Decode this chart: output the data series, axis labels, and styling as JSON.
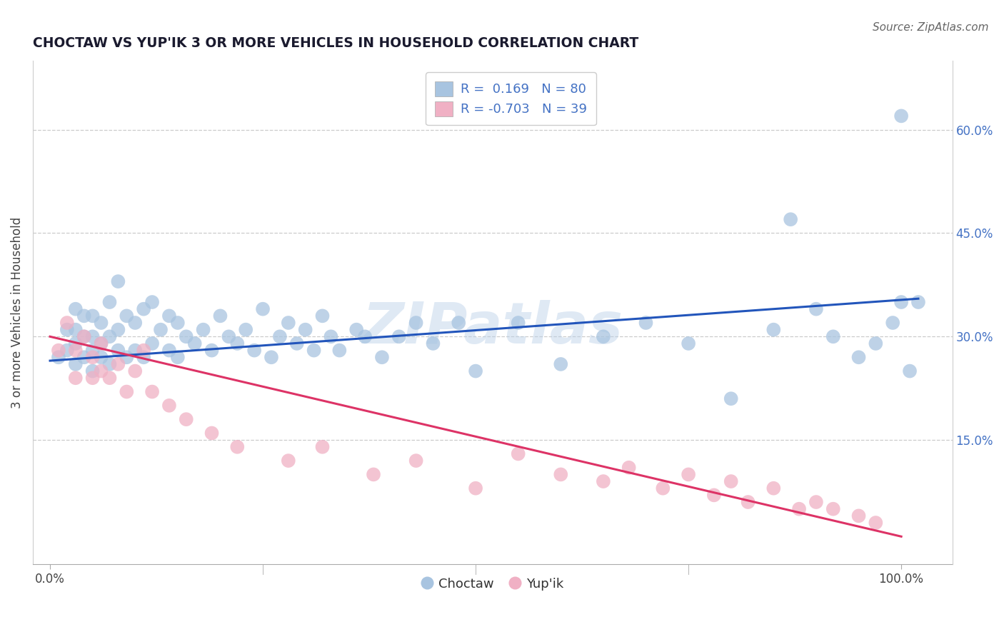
{
  "title": "CHOCTAW VS YUP'IK 3 OR MORE VEHICLES IN HOUSEHOLD CORRELATION CHART",
  "source": "Source: ZipAtlas.com",
  "ylabel": "3 or more Vehicles in Household",
  "ytick_values": [
    0.15,
    0.3,
    0.45,
    0.6
  ],
  "ytick_labels": [
    "15.0%",
    "30.0%",
    "45.0%",
    "60.0%"
  ],
  "xtick_values": [
    0.0,
    1.0
  ],
  "xtick_labels": [
    "0.0%",
    "100.0%"
  ],
  "xlim": [
    -0.02,
    1.06
  ],
  "ylim": [
    -0.03,
    0.7
  ],
  "choctaw_color": "#a8c4e0",
  "yupik_color": "#f0b0c4",
  "choctaw_line_color": "#2255bb",
  "yupik_line_color": "#dd3366",
  "watermark": "ZIPatlas",
  "choctaw_R": 0.169,
  "choctaw_N": 80,
  "yupik_R": -0.703,
  "yupik_N": 39,
  "choctaw_line_x0": 0.0,
  "choctaw_line_y0": 0.265,
  "choctaw_line_x1": 1.02,
  "choctaw_line_y1": 0.355,
  "yupik_line_x0": 0.0,
  "yupik_line_y0": 0.3,
  "yupik_line_x1": 1.0,
  "yupik_line_y1": 0.01,
  "choctaw_x": [
    0.01,
    0.02,
    0.02,
    0.03,
    0.03,
    0.03,
    0.03,
    0.04,
    0.04,
    0.04,
    0.05,
    0.05,
    0.05,
    0.05,
    0.06,
    0.06,
    0.06,
    0.07,
    0.07,
    0.07,
    0.08,
    0.08,
    0.08,
    0.09,
    0.09,
    0.1,
    0.1,
    0.11,
    0.11,
    0.12,
    0.12,
    0.13,
    0.14,
    0.14,
    0.15,
    0.15,
    0.16,
    0.17,
    0.18,
    0.19,
    0.2,
    0.21,
    0.22,
    0.23,
    0.24,
    0.25,
    0.26,
    0.27,
    0.28,
    0.29,
    0.3,
    0.31,
    0.32,
    0.33,
    0.34,
    0.36,
    0.37,
    0.39,
    0.41,
    0.43,
    0.45,
    0.48,
    0.5,
    0.55,
    0.6,
    0.65,
    0.7,
    0.75,
    0.8,
    0.85,
    0.87,
    0.9,
    0.92,
    0.95,
    0.97,
    0.99,
    1.0,
    1.0,
    1.01,
    1.02
  ],
  "choctaw_y": [
    0.27,
    0.28,
    0.31,
    0.26,
    0.29,
    0.31,
    0.34,
    0.27,
    0.3,
    0.33,
    0.25,
    0.28,
    0.3,
    0.33,
    0.27,
    0.29,
    0.32,
    0.26,
    0.3,
    0.35,
    0.28,
    0.31,
    0.38,
    0.27,
    0.33,
    0.28,
    0.32,
    0.27,
    0.34,
    0.29,
    0.35,
    0.31,
    0.28,
    0.33,
    0.27,
    0.32,
    0.3,
    0.29,
    0.31,
    0.28,
    0.33,
    0.3,
    0.29,
    0.31,
    0.28,
    0.34,
    0.27,
    0.3,
    0.32,
    0.29,
    0.31,
    0.28,
    0.33,
    0.3,
    0.28,
    0.31,
    0.3,
    0.27,
    0.3,
    0.32,
    0.29,
    0.32,
    0.25,
    0.32,
    0.26,
    0.3,
    0.32,
    0.29,
    0.21,
    0.31,
    0.47,
    0.34,
    0.3,
    0.27,
    0.29,
    0.32,
    0.35,
    0.62,
    0.25,
    0.35
  ],
  "yupik_x": [
    0.01,
    0.02,
    0.03,
    0.03,
    0.04,
    0.05,
    0.05,
    0.06,
    0.06,
    0.07,
    0.08,
    0.09,
    0.1,
    0.11,
    0.12,
    0.14,
    0.16,
    0.19,
    0.22,
    0.28,
    0.32,
    0.38,
    0.43,
    0.5,
    0.55,
    0.6,
    0.65,
    0.68,
    0.72,
    0.75,
    0.78,
    0.8,
    0.82,
    0.85,
    0.88,
    0.9,
    0.92,
    0.95,
    0.97
  ],
  "yupik_y": [
    0.28,
    0.32,
    0.24,
    0.28,
    0.3,
    0.24,
    0.27,
    0.25,
    0.29,
    0.24,
    0.26,
    0.22,
    0.25,
    0.28,
    0.22,
    0.2,
    0.18,
    0.16,
    0.14,
    0.12,
    0.14,
    0.1,
    0.12,
    0.08,
    0.13,
    0.1,
    0.09,
    0.11,
    0.08,
    0.1,
    0.07,
    0.09,
    0.06,
    0.08,
    0.05,
    0.06,
    0.05,
    0.04,
    0.03
  ]
}
